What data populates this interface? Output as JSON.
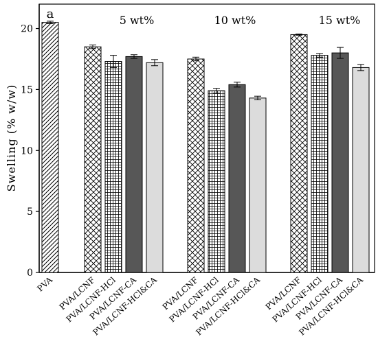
{
  "chart_data": {
    "type": "bar",
    "ylabel": "Swelling (% w/w)",
    "ylim": [
      0,
      22
    ],
    "yticks": [
      0,
      5,
      10,
      15,
      20
    ],
    "panel_letter": "a",
    "group_labels": [
      "5 wt%",
      "10 wt%",
      "15 wt%"
    ],
    "bars": [
      {
        "label": "PVA",
        "value": 20.5,
        "error": 0.1,
        "pattern": "diagonal",
        "group": 0
      },
      {
        "label": "PVA/LCNF",
        "value": 18.5,
        "error": 0.15,
        "pattern": "crosshatch",
        "group": 1
      },
      {
        "label": "PVA/LCNF-HCl",
        "value": 17.3,
        "error": 0.5,
        "pattern": "grid",
        "group": 1
      },
      {
        "label": "PVA/LCNF-CA",
        "value": 17.7,
        "error": 0.15,
        "pattern": "dark",
        "group": 1
      },
      {
        "label": "PVA/LCNF-HCl&CA",
        "value": 17.2,
        "error": 0.25,
        "pattern": "light",
        "group": 1
      },
      {
        "label": "PVA/LCNF",
        "value": 17.5,
        "error": 0.15,
        "pattern": "crosshatch",
        "group": 2
      },
      {
        "label": "PVA/LCNF-HCl",
        "value": 14.9,
        "error": 0.2,
        "pattern": "grid",
        "group": 2
      },
      {
        "label": "PVA/LCNF-CA",
        "value": 15.4,
        "error": 0.2,
        "pattern": "dark",
        "group": 2
      },
      {
        "label": "PVA/LCNF-HCl&CA",
        "value": 14.3,
        "error": 0.15,
        "pattern": "light",
        "group": 2
      },
      {
        "label": "PVA/LCNF",
        "value": 19.5,
        "error": 0.05,
        "pattern": "crosshatch",
        "group": 3
      },
      {
        "label": "PVA/LCNF-HCl",
        "value": 17.8,
        "error": 0.15,
        "pattern": "grid",
        "group": 3
      },
      {
        "label": "PVA/LCNF-CA",
        "value": 18.0,
        "error": 0.45,
        "pattern": "dark",
        "group": 3
      },
      {
        "label": "PVA/LCNF-HCl&CA",
        "value": 16.8,
        "error": 0.25,
        "pattern": "light",
        "group": 3
      }
    ],
    "colors": {
      "dark": "#575757",
      "light": "#dcdcdc",
      "stroke": "#000000",
      "background": "#ffffff"
    },
    "grid": false,
    "legend": "none"
  }
}
